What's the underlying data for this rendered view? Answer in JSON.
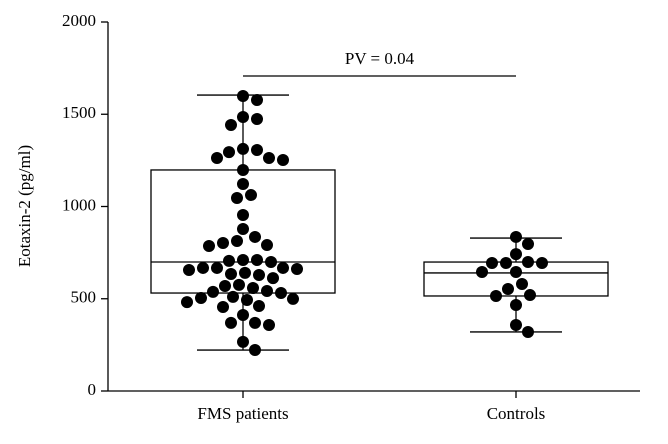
{
  "chart_data": {
    "type": "box",
    "ylabel": "Eotaxin-2 (pg/ml)",
    "annotation": "PV = 0.04",
    "categories": [
      "FMS patients",
      "Controls"
    ],
    "ylim": [
      0,
      2000
    ],
    "yticks": [
      0,
      500,
      1000,
      1500,
      2000
    ],
    "color": "#000000",
    "boxes": [
      {
        "whisker_low": 222,
        "q1": 531,
        "median": 699,
        "q3": 1198,
        "whisker_high": 1604,
        "points": [
          1599,
          1577,
          1485,
          1474,
          1442,
          1312,
          1306,
          1295,
          1263,
          1263,
          1252,
          1198,
          1122,
          1062,
          1046,
          954,
          878,
          835,
          813,
          802,
          791,
          786,
          710,
          710,
          705,
          699,
          667,
          667,
          667,
          661,
          656,
          640,
          634,
          629,
          612,
          575,
          569,
          558,
          542,
          537,
          531,
          510,
          504,
          499,
          493,
          482,
          461,
          455,
          412,
          369,
          369,
          358,
          266,
          222
        ]
      },
      {
        "whisker_low": 320,
        "q1": 515,
        "median": 640,
        "q3": 699,
        "whisker_high": 829,
        "points": [
          835,
          797,
          742,
          699,
          694,
          694,
          694,
          645,
          645,
          580,
          553,
          520,
          515,
          466,
          358,
          320
        ]
      }
    ]
  }
}
